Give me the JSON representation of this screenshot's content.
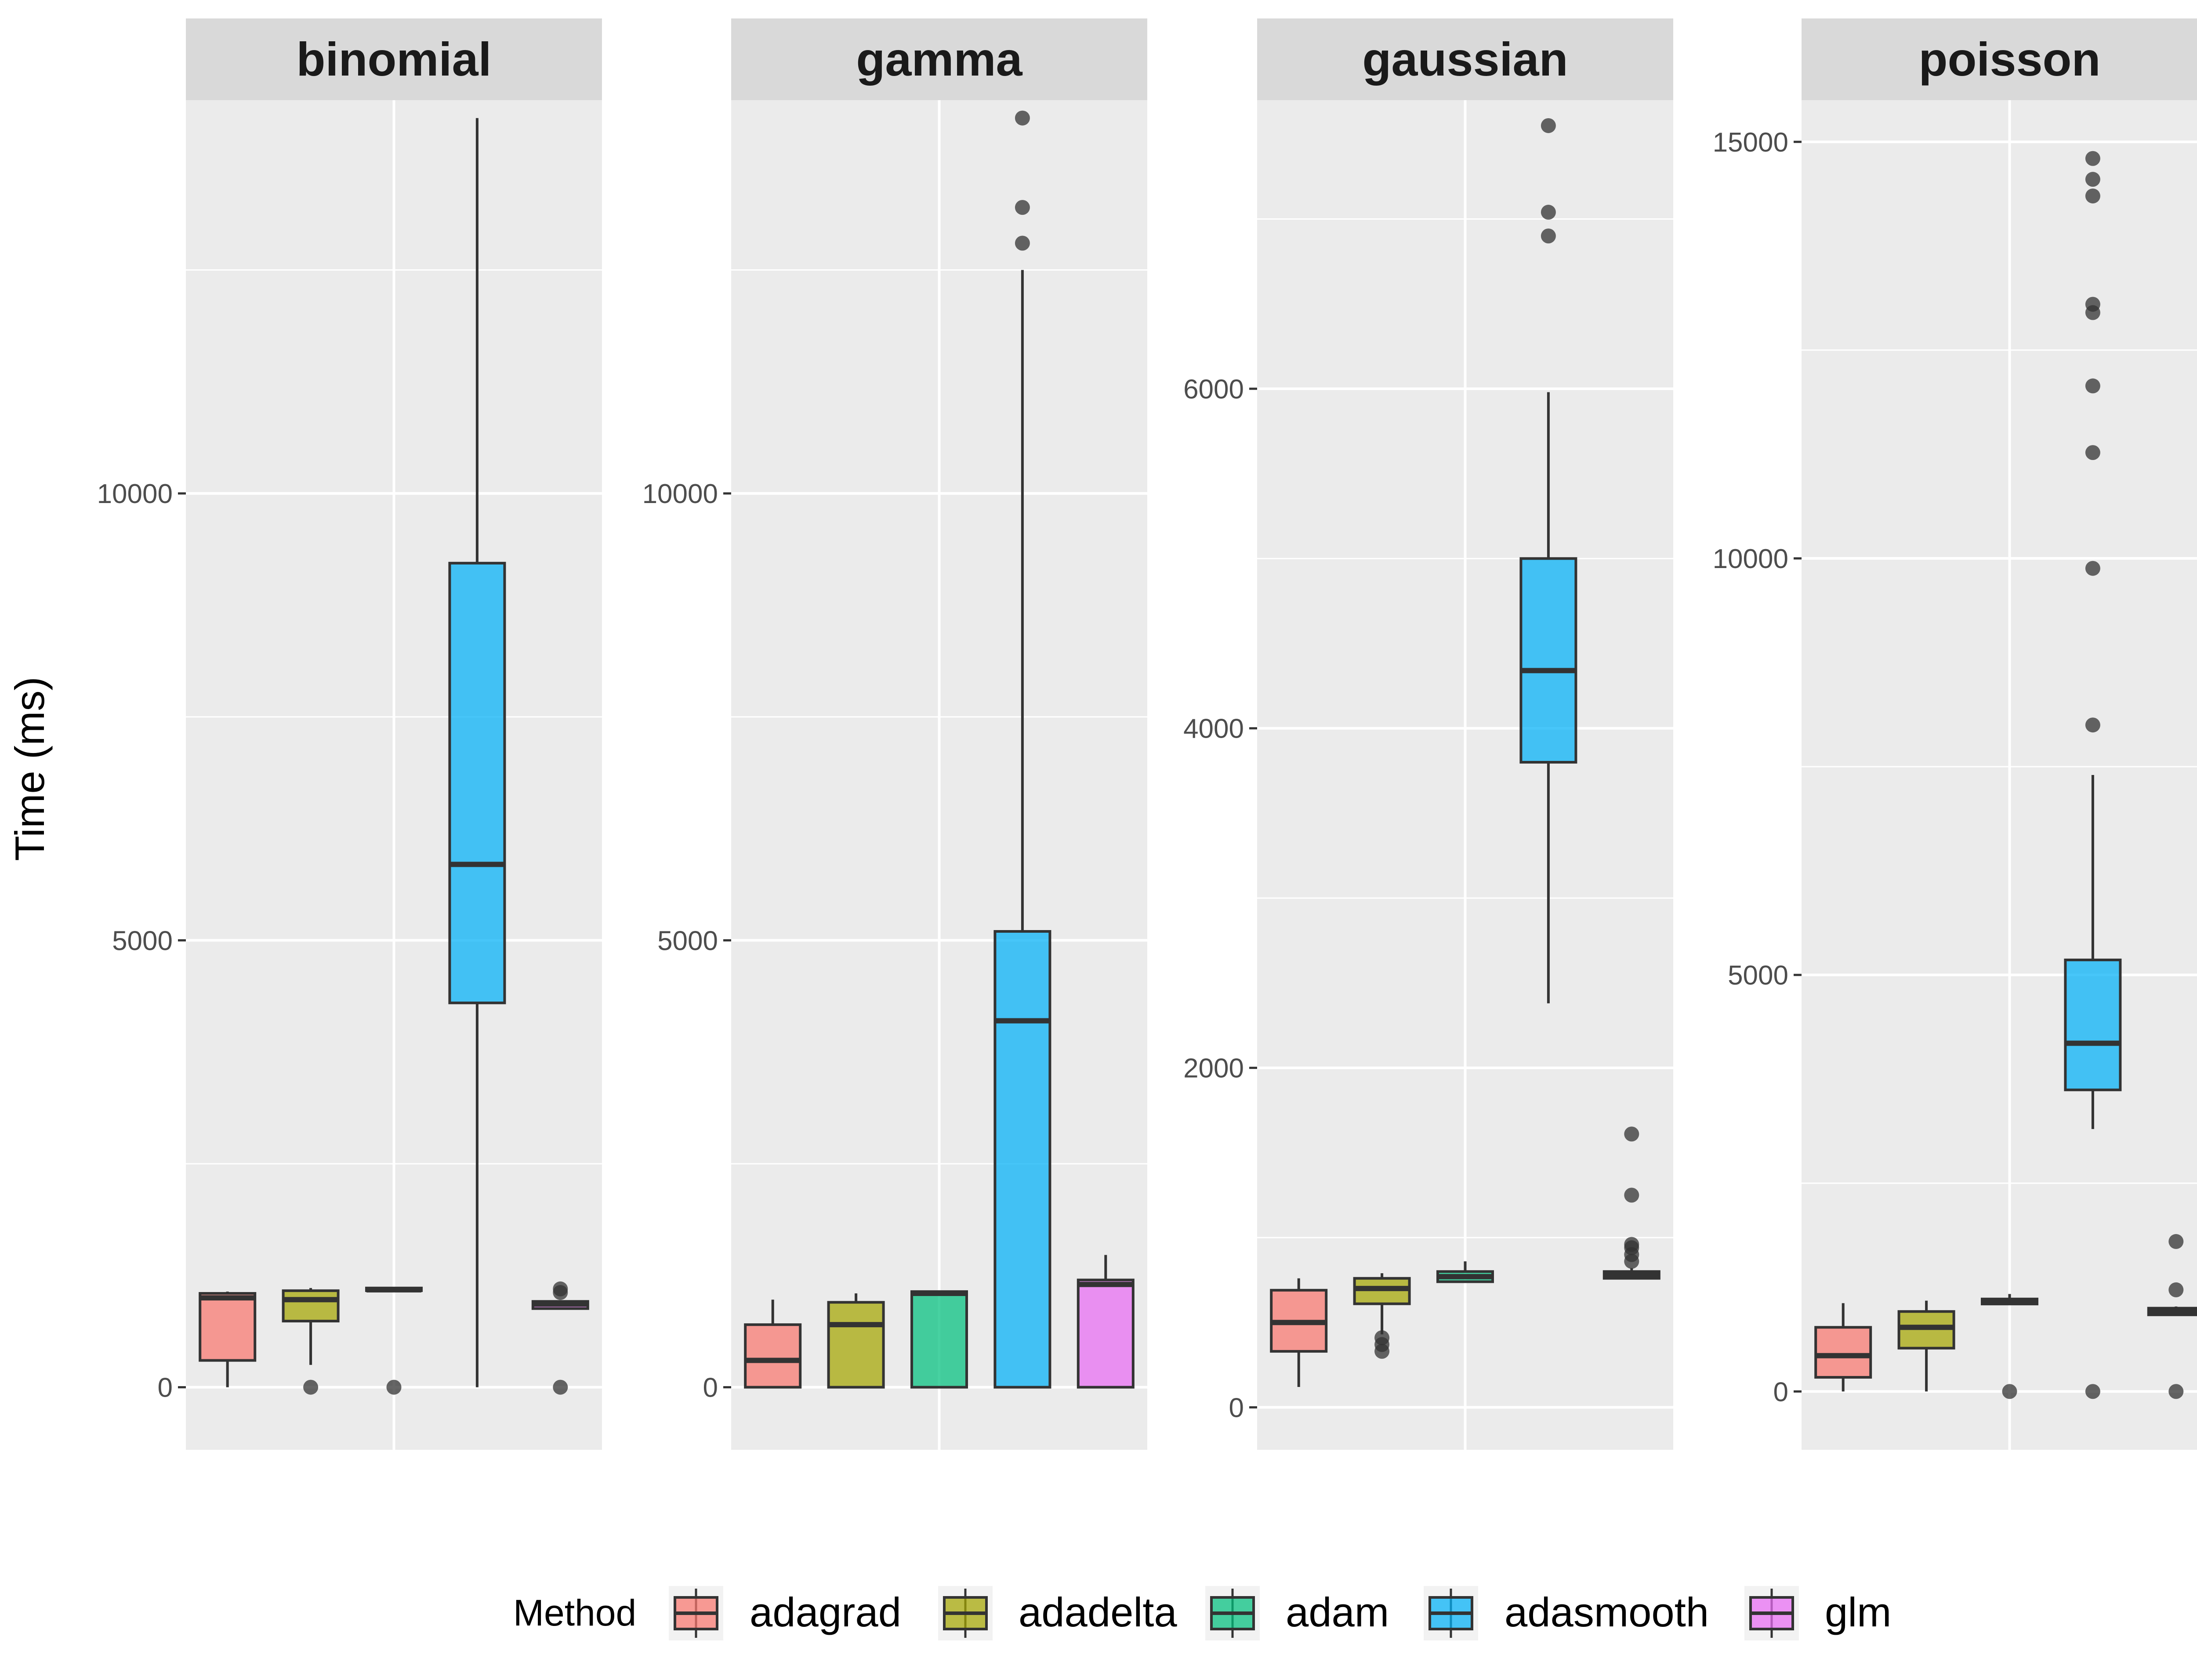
{
  "chart_data": {
    "type": "box",
    "ylabel": "Time (ms)",
    "legend": {
      "title": "Method",
      "position": "bottom",
      "entries": [
        {
          "name": "adagrad",
          "color": "#F8766D"
        },
        {
          "name": "adadelta",
          "color": "#A3A500"
        },
        {
          "name": "adam",
          "color": "#00BF7D"
        },
        {
          "name": "adasmooth",
          "color": "#00B0F6"
        },
        {
          "name": "glm",
          "color": "#E76BF3"
        }
      ]
    },
    "grid": true,
    "panels": [
      {
        "title": "binomial",
        "ylim": [
          -700,
          14400
        ],
        "yticks": [
          0,
          5000,
          10000
        ],
        "boxes": [
          {
            "method": "adagrad",
            "min": 0,
            "q1": 300,
            "median": 1000,
            "q3": 1050,
            "max": 1070,
            "outliers": []
          },
          {
            "method": "adadelta",
            "min": 250,
            "q1": 740,
            "median": 980,
            "q3": 1080,
            "max": 1110,
            "outliers": [
              0
            ]
          },
          {
            "method": "adam",
            "min": 1080,
            "q1": 1080,
            "median": 1090,
            "q3": 1110,
            "max": 1120,
            "outliers": [
              0
            ]
          },
          {
            "method": "adasmooth",
            "min": 0,
            "q1": 4300,
            "median": 5850,
            "q3": 9220,
            "max": 14200,
            "outliers": []
          },
          {
            "method": "glm",
            "min": 880,
            "q1": 880,
            "median": 930,
            "q3": 960,
            "max": 970,
            "outliers": [
              0,
              1060,
              1100
            ]
          }
        ]
      },
      {
        "title": "gamma",
        "ylim": [
          -700,
          14400
        ],
        "yticks": [
          0,
          5000,
          10000
        ],
        "boxes": [
          {
            "method": "adagrad",
            "min": 0,
            "q1": 0,
            "median": 300,
            "q3": 700,
            "max": 980,
            "outliers": []
          },
          {
            "method": "adadelta",
            "min": 0,
            "q1": 0,
            "median": 700,
            "q3": 950,
            "max": 1050,
            "outliers": []
          },
          {
            "method": "adam",
            "min": 0,
            "q1": 0,
            "median": 1050,
            "q3": 1070,
            "max": 1080,
            "outliers": []
          },
          {
            "method": "adasmooth",
            "min": 0,
            "q1": 0,
            "median": 4100,
            "q3": 5100,
            "max": 12500,
            "outliers": [
              12800,
              13200,
              14200
            ]
          },
          {
            "method": "glm",
            "min": 0,
            "q1": 0,
            "median": 1150,
            "q3": 1200,
            "max": 1480,
            "outliers": []
          }
        ]
      },
      {
        "title": "gaussian",
        "ylim": [
          -250,
          7700
        ],
        "yticks": [
          0,
          2000,
          4000,
          6000
        ],
        "boxes": [
          {
            "method": "adagrad",
            "min": 120,
            "q1": 330,
            "median": 500,
            "q3": 690,
            "max": 760,
            "outliers": []
          },
          {
            "method": "adadelta",
            "min": 430,
            "q1": 610,
            "median": 700,
            "q3": 760,
            "max": 790,
            "outliers": [
              330,
              370,
              410
            ]
          },
          {
            "method": "adam",
            "min": 740,
            "q1": 740,
            "median": 770,
            "q3": 800,
            "max": 860,
            "outliers": []
          },
          {
            "method": "adasmooth",
            "min": 2380,
            "q1": 3800,
            "median": 4340,
            "q3": 5000,
            "max": 5980,
            "outliers": [
              6900,
              7040,
              7550
            ]
          },
          {
            "method": "glm",
            "min": 760,
            "q1": 760,
            "median": 780,
            "q3": 800,
            "max": 820,
            "outliers": [
              860,
              900,
              940,
              960,
              1250,
              1610
            ]
          }
        ]
      },
      {
        "title": "poisson",
        "ylim": [
          -700,
          15500
        ],
        "yticks": [
          0,
          5000,
          10000,
          15000
        ],
        "boxes": [
          {
            "method": "adagrad",
            "min": 0,
            "q1": 170,
            "median": 430,
            "q3": 770,
            "max": 1060,
            "outliers": []
          },
          {
            "method": "adadelta",
            "min": 0,
            "q1": 520,
            "median": 770,
            "q3": 960,
            "max": 1090,
            "outliers": []
          },
          {
            "method": "adam",
            "min": 1050,
            "q1": 1050,
            "median": 1080,
            "q3": 1110,
            "max": 1170,
            "outliers": [
              0
            ]
          },
          {
            "method": "adasmooth",
            "min": 3150,
            "q1": 3620,
            "median": 4180,
            "q3": 5180,
            "max": 7400,
            "outliers": [
              0,
              8000,
              9880,
              11270,
              12070,
              12950,
              13050,
              14350,
              14550,
              14800
            ]
          },
          {
            "method": "glm",
            "min": 920,
            "q1": 920,
            "median": 960,
            "q3": 1000,
            "max": 1020,
            "outliers": [
              0,
              1220,
              1800
            ]
          }
        ]
      }
    ]
  }
}
